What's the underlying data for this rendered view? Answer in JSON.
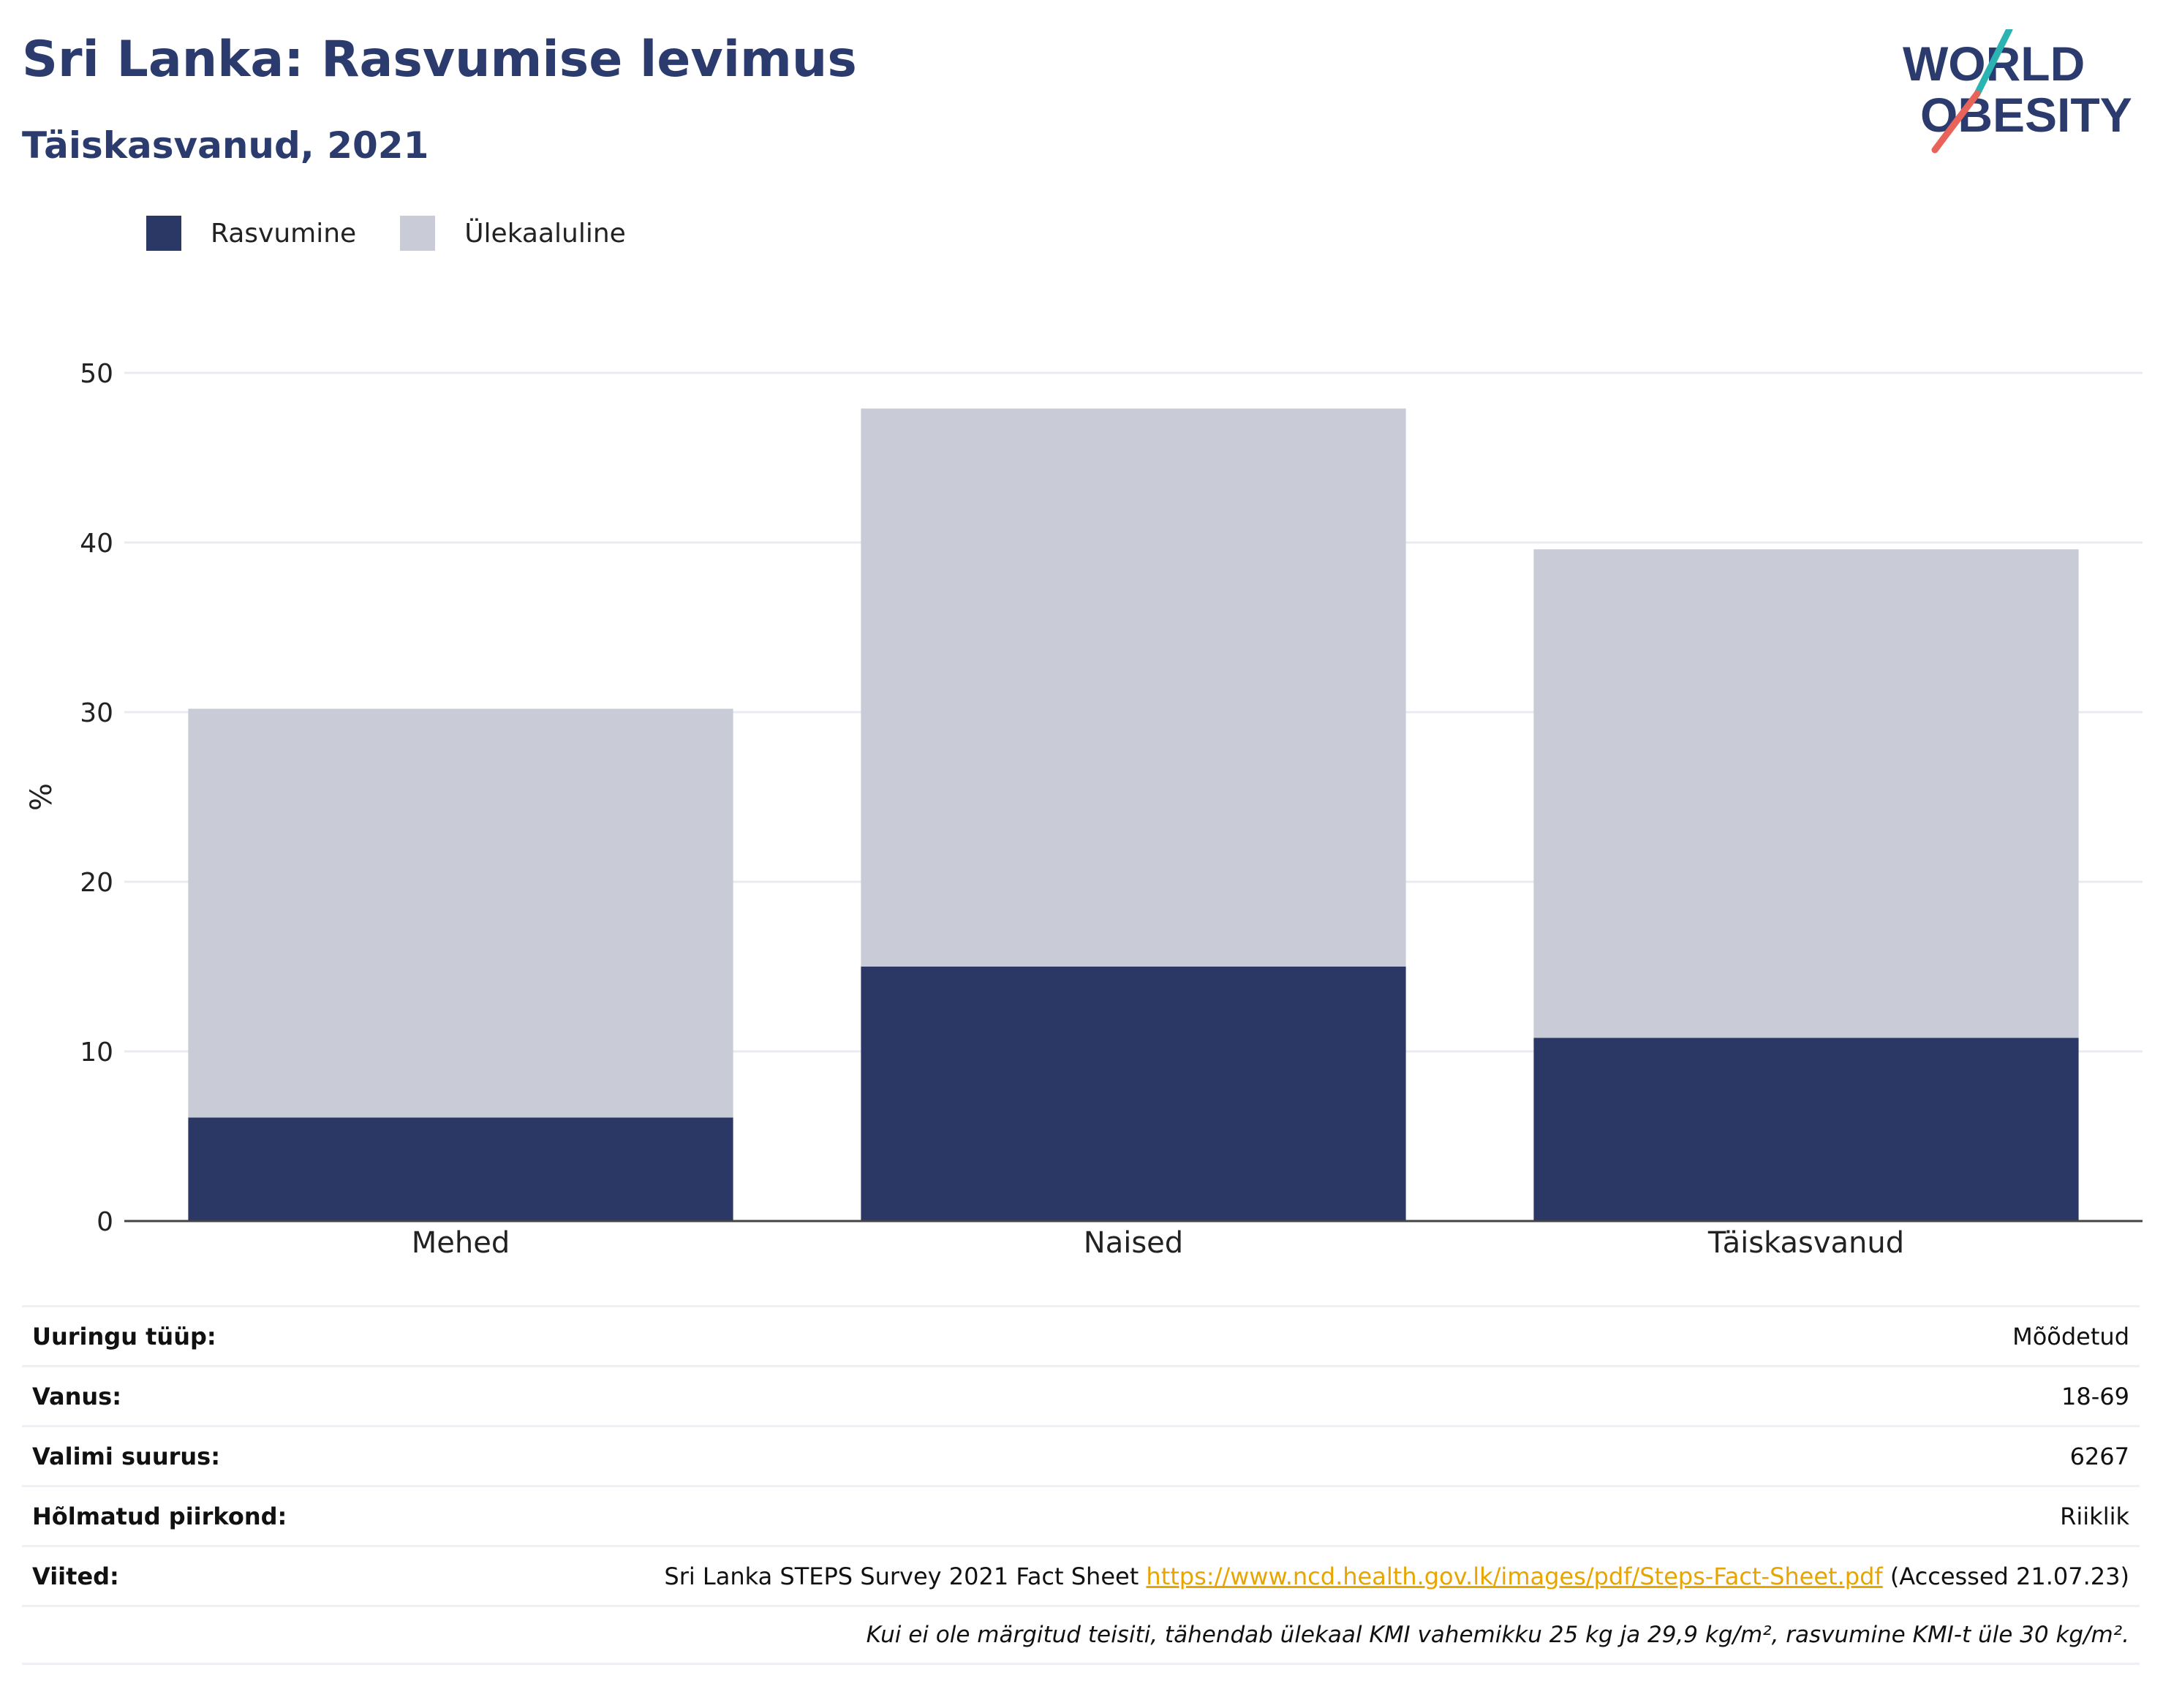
{
  "header": {
    "title": "Sri Lanka: Rasvumise levimus",
    "subtitle": "Täiskasvanud, 2021"
  },
  "logo": {
    "line1": "WORLD",
    "line2": "OBESITY"
  },
  "colors": {
    "obesity": "#2b3764",
    "overweight": "#c9cbd7",
    "title": "#2b3b6e",
    "link": "#e8a500"
  },
  "chart_data": {
    "type": "bar",
    "stacked": true,
    "categories": [
      "Mehed",
      "Naised",
      "Täiskasvanud"
    ],
    "series": [
      {
        "name": "Rasvumine",
        "values": [
          6.1,
          15.0,
          10.8
        ]
      },
      {
        "name": "Ülekaaluline",
        "values": [
          24.1,
          32.9,
          28.8
        ]
      }
    ],
    "xlabel": "",
    "ylabel": "%",
    "ylim": [
      0,
      50
    ],
    "yticks": [
      0,
      10,
      20,
      30,
      40,
      50
    ],
    "grid": true,
    "legend_position": "top-left"
  },
  "info": {
    "survey_type_label": "Uuringu tüüp:",
    "survey_type_value": "Mõõdetud",
    "age_label": "Vanus:",
    "age_value": "18-69",
    "sample_label": "Valimi suurus:",
    "sample_value": "6267",
    "region_label": "Hõlmatud piirkond:",
    "region_value": "Riiklik",
    "refs_label": "Viited:",
    "refs_text": "Sri Lanka STEPS Survey 2021 Fact Sheet ",
    "refs_link": "https://www.ncd.health.gov.lk/images/pdf/Steps-Fact-Sheet.pdf",
    "refs_accessed": " (Accessed 21.07.23)",
    "note": "Kui ei ole märgitud teisiti, tähendab ülekaal KMI vahemikku 25 kg ja 29,9 kg/m², rasvumine KMI-t üle 30 kg/m²."
  }
}
